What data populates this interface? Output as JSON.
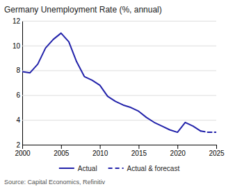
{
  "chart_data": {
    "type": "line",
    "title": "Germany Unemployment Rate (%, annual)",
    "annotations": [
      "Source: Capital Economics, Refinitiv"
    ],
    "xlim": [
      2000,
      2025
    ],
    "ylim": [
      2,
      12
    ],
    "xticks": [
      2000,
      2005,
      2010,
      2015,
      2020,
      2025
    ],
    "yticks": [
      2,
      4,
      6,
      8,
      10,
      12
    ],
    "grid": true,
    "legend": "bottom",
    "series": [
      {
        "name": "Actual",
        "color": "#2222aa",
        "line_style": "solid",
        "x": [
          2000,
          2001,
          2002,
          2003,
          2004,
          2005,
          2006,
          2007,
          2008,
          2009,
          2010,
          2011,
          2012,
          2013,
          2014,
          2015,
          2016,
          2017,
          2018,
          2019,
          2020,
          2021,
          2022,
          2023
        ],
        "values": [
          7.9,
          7.8,
          8.5,
          9.8,
          10.5,
          11.0,
          10.3,
          8.7,
          7.5,
          7.2,
          6.8,
          5.9,
          5.5,
          5.2,
          5.0,
          4.7,
          4.2,
          3.8,
          3.5,
          3.2,
          3.0,
          3.8,
          3.5,
          3.1
        ]
      },
      {
        "name": "Actual & forecast",
        "color": "#2222aa",
        "line_style": "dashed",
        "x": [
          2023,
          2024,
          2025
        ],
        "values": [
          3.1,
          3.0,
          3.0
        ]
      }
    ]
  }
}
